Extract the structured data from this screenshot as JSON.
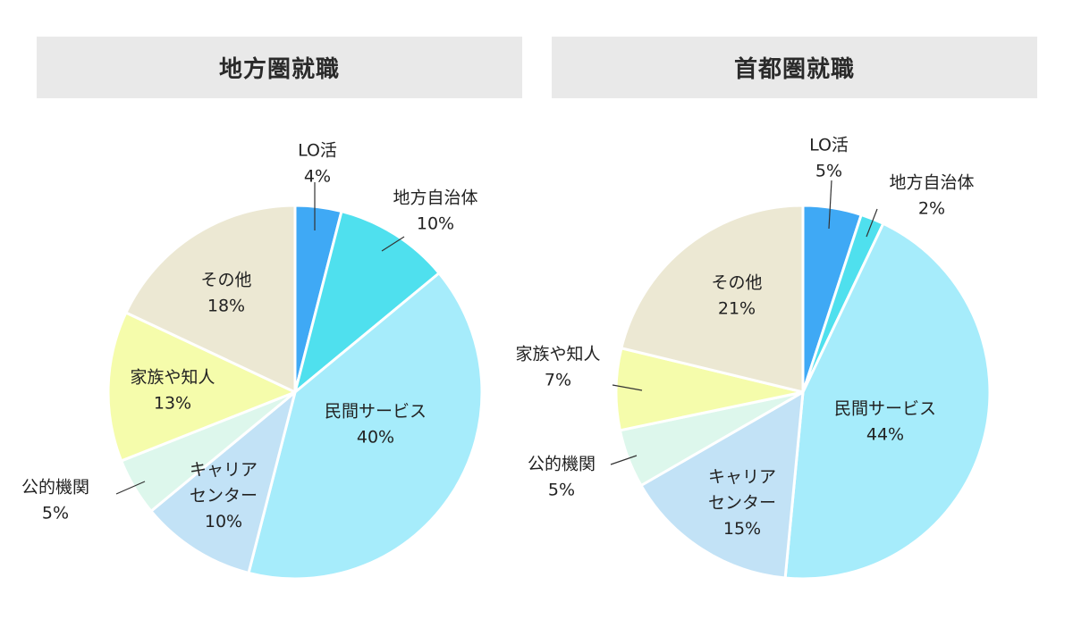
{
  "colors": {
    "LO活": "#3fa9f5",
    "地方自治体": "#4fe0ee",
    "民間サービス": "#a6ecfb",
    "キャリアセンター": "#c2e2f6",
    "公的機関": "#ddf7ec",
    "家族や知人": "#f5fcab",
    "その他": "#ece8d3"
  },
  "chart_data": [
    {
      "type": "pie",
      "title": "地方圏就職",
      "slices": [
        {
          "key": "LO活",
          "label": [
            "LO活"
          ],
          "value": 4,
          "value_label": "4%"
        },
        {
          "key": "地方自治体",
          "label": [
            "地方自治体"
          ],
          "value": 10,
          "value_label": "10%"
        },
        {
          "key": "民間サービス",
          "label": [
            "民間サービス"
          ],
          "value": 40,
          "value_label": "40%"
        },
        {
          "key": "キャリアセンター",
          "label": [
            "キャリア",
            "センター"
          ],
          "value": 10,
          "value_label": "10%"
        },
        {
          "key": "公的機関",
          "label": [
            "公的機関"
          ],
          "value": 5,
          "value_label": "5%"
        },
        {
          "key": "家族や知人",
          "label": [
            "家族や知人"
          ],
          "value": 13,
          "value_label": "13%"
        },
        {
          "key": "その他",
          "label": [
            "その他"
          ],
          "value": 18,
          "value_label": "18%"
        }
      ]
    },
    {
      "type": "pie",
      "title": "首都圏就職",
      "slices": [
        {
          "key": "LO活",
          "label": [
            "LO活"
          ],
          "value": 5,
          "value_label": "5%"
        },
        {
          "key": "地方自治体",
          "label": [
            "地方自治体"
          ],
          "value": 2,
          "value_label": "2%"
        },
        {
          "key": "民間サービス",
          "label": [
            "民間サービス"
          ],
          "value": 44,
          "value_label": "44%"
        },
        {
          "key": "キャリアセンター",
          "label": [
            "キャリア",
            "センター"
          ],
          "value": 15,
          "value_label": "15%"
        },
        {
          "key": "公的機関",
          "label": [
            "公的機関"
          ],
          "value": 5,
          "value_label": "5%"
        },
        {
          "key": "家族や知人",
          "label": [
            "家族や知人"
          ],
          "value": 7,
          "value_label": "7%"
        },
        {
          "key": "その他",
          "label": [
            "その他"
          ],
          "value": 21,
          "value_label": "21%"
        }
      ]
    }
  ]
}
